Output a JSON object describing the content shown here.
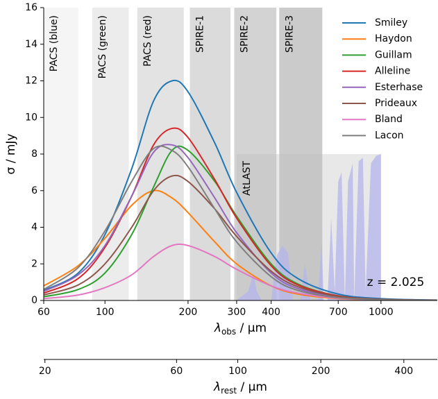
{
  "chart_data": {
    "type": "line",
    "ylabel": "σ / mJy",
    "xlabel": {
      "symbol": "λ",
      "sub": "obs",
      "unit": " / μm"
    },
    "x2label": {
      "symbol": "λ",
      "sub": "rest",
      "unit": " / μm"
    },
    "xscale": "log",
    "xlim": [
      60,
      1600
    ],
    "ylim": [
      0,
      16
    ],
    "xticks": [
      60,
      100,
      200,
      300,
      400,
      700,
      1000
    ],
    "yticks": [
      0,
      2,
      4,
      6,
      8,
      10,
      12,
      14,
      16
    ],
    "x2lim": [
      19.8,
      528.9
    ],
    "x2ticks": [
      20,
      60,
      100,
      200,
      400
    ],
    "x": [
      60,
      80,
      100,
      125,
      150,
      175,
      200,
      250,
      300,
      400,
      500,
      700,
      1000,
      1600
    ],
    "series": [
      {
        "name": "Smiley",
        "color": "#1f77b4",
        "values": [
          0.55,
          1.5,
          3.6,
          7.2,
          10.9,
          12.0,
          11.4,
          8.6,
          5.9,
          2.6,
          1.2,
          0.35,
          0.1,
          0.02
        ]
      },
      {
        "name": "Haydon",
        "color": "#ff7f0e",
        "values": [
          0.8,
          1.9,
          3.4,
          5.2,
          6.0,
          5.6,
          4.8,
          3.2,
          2.0,
          0.8,
          0.35,
          0.1,
          0.03,
          0
        ]
      },
      {
        "name": "Guillam",
        "color": "#2ca02c",
        "values": [
          0.2,
          0.6,
          1.5,
          3.6,
          6.2,
          8.2,
          8.2,
          6.5,
          4.6,
          2.0,
          0.9,
          0.25,
          0.06,
          0.01
        ]
      },
      {
        "name": "Alleline",
        "color": "#d62728",
        "values": [
          0.4,
          1.2,
          2.9,
          5.7,
          8.5,
          9.4,
          8.9,
          6.6,
          4.5,
          1.9,
          0.85,
          0.25,
          0.06,
          0.01
        ]
      },
      {
        "name": "Esterhase",
        "color": "#9467bd",
        "values": [
          0.5,
          1.4,
          3.0,
          5.7,
          8.1,
          8.5,
          7.8,
          5.6,
          3.7,
          1.5,
          0.65,
          0.18,
          0.04,
          0
        ]
      },
      {
        "name": "Prideaux",
        "color": "#8c564b",
        "values": [
          0.3,
          0.85,
          2.0,
          4.0,
          6.0,
          6.8,
          6.5,
          5.0,
          3.5,
          1.6,
          0.75,
          0.22,
          0.06,
          0.01
        ]
      },
      {
        "name": "Bland",
        "color": "#e377c2",
        "values": [
          0.1,
          0.3,
          0.7,
          1.4,
          2.4,
          3.0,
          3.0,
          2.4,
          1.7,
          0.8,
          0.4,
          0.12,
          0.03,
          0
        ]
      },
      {
        "name": "Lacon",
        "color": "#7f7f7f",
        "values": [
          0.6,
          1.8,
          3.8,
          6.5,
          8.3,
          8.2,
          7.3,
          5.0,
          3.2,
          1.3,
          0.55,
          0.15,
          0.04,
          0
        ]
      }
    ],
    "bands": [
      {
        "label": "PACS (blue)",
        "range": [
          60,
          80
        ],
        "color": "#f5f5f5"
      },
      {
        "label": "PACS (green)",
        "range": [
          90,
          122
        ],
        "color": "#ececec"
      },
      {
        "label": "PACS (red)",
        "range": [
          131,
          193
        ],
        "color": "#e3e3e3"
      },
      {
        "label": "SPIRE-1",
        "range": [
          203,
          285
        ],
        "color": "#dbdbdb"
      },
      {
        "label": "SPIRE-2",
        "range": [
          294,
          418
        ],
        "color": "#d3d3d3"
      },
      {
        "label": "SPIRE-3",
        "range": [
          428,
          613
        ],
        "color": "#cbcbcb"
      }
    ],
    "region": {
      "label": "AtLAST",
      "range": [
        300,
        1000
      ],
      "top": 8,
      "color": "#bdbdbd"
    },
    "atmosphere": {
      "color": "#b4b4ee",
      "x": [
        300,
        330,
        345,
        355,
        370,
        400,
        420,
        440,
        460,
        480,
        510,
        530,
        555,
        590,
        610,
        620,
        640,
        660,
        680,
        700,
        720,
        740,
        760,
        790,
        800,
        830,
        860,
        880,
        920,
        960,
        1000
      ],
      "values": [
        0,
        0.5,
        1.5,
        0.5,
        0,
        0,
        2.5,
        3.0,
        2.6,
        0,
        0,
        2.0,
        0,
        0,
        3.2,
        0,
        0,
        4.5,
        0.5,
        6.5,
        7.0,
        0,
        6.5,
        7.5,
        0,
        7.6,
        7.8,
        0.5,
        7.5,
        7.9,
        8
      ]
    },
    "annotation": "z = 2.025",
    "legend": "upper right",
    "grid": false
  }
}
